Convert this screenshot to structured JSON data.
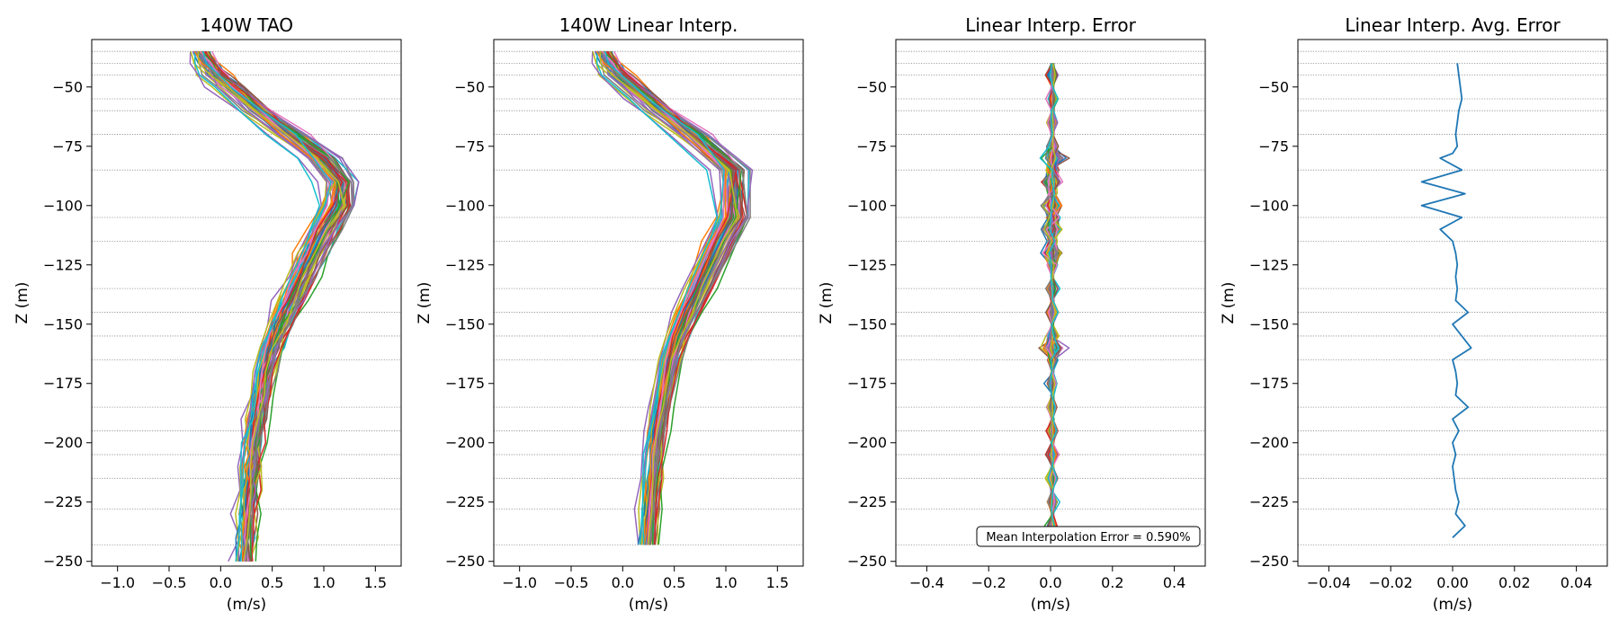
{
  "chart_data": [
    {
      "type": "line",
      "title": "140W TAO",
      "xlabel": "(m/s)",
      "ylabel": "Z (m)",
      "xlim": [
        -1.25,
        1.75
      ],
      "ylim": [
        -252,
        -30
      ],
      "xticks": [
        -1.0,
        -0.5,
        0.0,
        0.5,
        1.0,
        1.5
      ],
      "xtick_labels": [
        "−1.0",
        "−0.5",
        "0.0",
        "0.5",
        "1.0",
        "1.5"
      ],
      "yticks": [
        -50,
        -75,
        -100,
        -125,
        -150,
        -175,
        -200,
        -225,
        -250
      ],
      "ytick_labels": [
        "−50",
        "−75",
        "−100",
        "−125",
        "−150",
        "−175",
        "−200",
        "−225",
        "−250"
      ],
      "depth_grid": [
        -35,
        -40,
        -45,
        -55,
        -60,
        -70,
        -85,
        -105,
        -115,
        -135,
        -145,
        -155,
        -165,
        -185,
        -195,
        -205,
        -215,
        -228,
        -243
      ],
      "series_count": 60,
      "z": [
        -35,
        -40,
        -45,
        -50,
        -60,
        -70,
        -80,
        -90,
        -100,
        -110,
        -120,
        -130,
        -140,
        -150,
        -160,
        -170,
        -180,
        -190,
        -200,
        -210,
        -220,
        -230,
        -240,
        -250
      ],
      "mean_profile": [
        -0.22,
        -0.15,
        -0.05,
        0.08,
        0.35,
        0.65,
        0.95,
        1.12,
        1.12,
        0.98,
        0.86,
        0.76,
        0.66,
        0.55,
        0.47,
        0.41,
        0.37,
        0.33,
        0.3,
        0.28,
        0.26,
        0.24,
        0.23,
        0.22
      ],
      "grid": false
    },
    {
      "type": "line",
      "title": "140W Linear Interp.",
      "xlabel": "(m/s)",
      "ylabel": "Z (m)",
      "xlim": [
        -1.25,
        1.75
      ],
      "ylim": [
        -252,
        -30
      ],
      "xticks": [
        -1.0,
        -0.5,
        0.0,
        0.5,
        1.0,
        1.5
      ],
      "xtick_labels": [
        "−1.0",
        "−0.5",
        "0.0",
        "0.5",
        "1.0",
        "1.5"
      ],
      "yticks": [
        -50,
        -75,
        -100,
        -125,
        -150,
        -175,
        -200,
        -225,
        -250
      ],
      "ytick_labels": [
        "−50",
        "−75",
        "−100",
        "−125",
        "−150",
        "−175",
        "−200",
        "−225",
        "−250"
      ],
      "depth_grid": [
        -35,
        -40,
        -45,
        -55,
        -60,
        -70,
        -85,
        -105,
        -115,
        -135,
        -145,
        -155,
        -165,
        -185,
        -195,
        -205,
        -215,
        -228,
        -243
      ],
      "series_count": 60,
      "z": [
        -35,
        -40,
        -45,
        -55,
        -60,
        -70,
        -85,
        -105,
        -115,
        -135,
        -145,
        -155,
        -165,
        -185,
        -195,
        -205,
        -215,
        -228,
        -243
      ],
      "grid": false
    },
    {
      "type": "line",
      "title": "Linear Interp. Error",
      "xlabel": "(m/s)",
      "ylabel": "Z (m)",
      "xlim": [
        -0.5,
        0.5
      ],
      "ylim": [
        -252,
        -30
      ],
      "xticks": [
        -0.4,
        -0.2,
        0.0,
        0.2,
        0.4
      ],
      "xtick_labels": [
        "−0.4",
        "−0.2",
        "0.0",
        "0.2",
        "0.4"
      ],
      "yticks": [
        -50,
        -75,
        -100,
        -125,
        -150,
        -175,
        -200,
        -225,
        -250
      ],
      "ytick_labels": [
        "−50",
        "−75",
        "−100",
        "−125",
        "−150",
        "−175",
        "−200",
        "−225",
        "−250"
      ],
      "depth_grid": [
        -35,
        -40,
        -45,
        -55,
        -60,
        -70,
        -85,
        -105,
        -115,
        -135,
        -145,
        -155,
        -165,
        -185,
        -195,
        -205,
        -215,
        -228,
        -243
      ],
      "series_count": 60,
      "z_range": [
        -240,
        -40
      ],
      "max_abs_error": 0.08,
      "annotation": "Mean Interpolation Error = 0.590%",
      "grid": false
    },
    {
      "type": "line",
      "title": "Linear Interp. Avg. Error",
      "xlabel": "(m/s)",
      "ylabel": "Z (m)",
      "xlim": [
        -0.05,
        0.05
      ],
      "ylim": [
        -252,
        -30
      ],
      "xticks": [
        -0.04,
        -0.02,
        0.0,
        0.02,
        0.04
      ],
      "xtick_labels": [
        "−0.04",
        "−0.02",
        "0.00",
        "0.02",
        "0.04"
      ],
      "yticks": [
        -50,
        -75,
        -100,
        -125,
        -150,
        -175,
        -200,
        -225,
        -250
      ],
      "ytick_labels": [
        "−50",
        "−75",
        "−100",
        "−125",
        "−150",
        "−175",
        "−200",
        "−225",
        "−250"
      ],
      "depth_grid": [
        -35,
        -40,
        -45,
        -55,
        -60,
        -70,
        -85,
        -105,
        -115,
        -135,
        -145,
        -155,
        -165,
        -185,
        -195,
        -205,
        -215,
        -228,
        -243
      ],
      "x": [
        0.0015,
        0.002,
        0.0025,
        0.003,
        0.002,
        0.0015,
        0.001,
        0.0015,
        0.0,
        -0.004,
        0.003,
        -0.01,
        0.004,
        -0.01,
        0.003,
        -0.004,
        0.0,
        0.001,
        0.0015,
        0.001,
        0.0015,
        0.001,
        0.005,
        0.0,
        0.006,
        0.0,
        0.001,
        0.0015,
        0.001,
        0.005,
        0.0,
        0.002,
        0.0,
        0.001,
        0.0,
        0.001,
        0.002,
        0.001,
        0.004,
        0.0
      ],
      "y": [
        -40,
        -45,
        -50,
        -55,
        -60,
        -65,
        -70,
        -75,
        -78,
        -80,
        -85,
        -90,
        -95,
        -100,
        -105,
        -110,
        -115,
        -120,
        -125,
        -130,
        -135,
        -140,
        -145,
        -150,
        -160,
        -165,
        -170,
        -175,
        -180,
        -185,
        -190,
        -195,
        -200,
        -205,
        -210,
        -220,
        -225,
        -230,
        -235,
        -240
      ],
      "color": "#1f77b4",
      "grid": false
    }
  ],
  "colors": [
    "#1f77b4",
    "#ff7f0e",
    "#2ca02c",
    "#d62728",
    "#9467bd",
    "#8c564b",
    "#e377c2",
    "#7f7f7f",
    "#bcbd22",
    "#17becf"
  ]
}
